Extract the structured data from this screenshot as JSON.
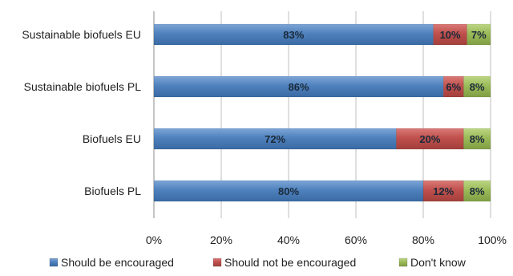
{
  "chart_data": {
    "type": "bar",
    "orientation": "horizontal",
    "stacked": true,
    "categories": [
      "Sustainable biofuels EU",
      "Sustainable biofuels PL",
      "Biofuels EU",
      "Biofuels PL"
    ],
    "series": [
      {
        "name": "Should be encouraged",
        "color": "#4f81bd",
        "values": [
          83,
          86,
          72,
          80
        ],
        "labels": [
          "83%",
          "86%",
          "72%",
          "80%"
        ]
      },
      {
        "name": "Should not be encouraged",
        "color": "#c0504d",
        "values": [
          10,
          6,
          20,
          12
        ],
        "labels": [
          "10%",
          "6%",
          "20%",
          "12%"
        ]
      },
      {
        "name": "Don't know",
        "color": "#9bbb59",
        "values": [
          7,
          8,
          8,
          8
        ],
        "labels": [
          "7%",
          "8%",
          "8%",
          "8%"
        ]
      }
    ],
    "xlim": [
      0,
      100
    ],
    "xticks": [
      0,
      20,
      40,
      60,
      80,
      100
    ],
    "xtick_labels": [
      "0%",
      "20%",
      "40%",
      "60%",
      "80%",
      "100%"
    ],
    "grid": true,
    "legend_position": "bottom"
  }
}
